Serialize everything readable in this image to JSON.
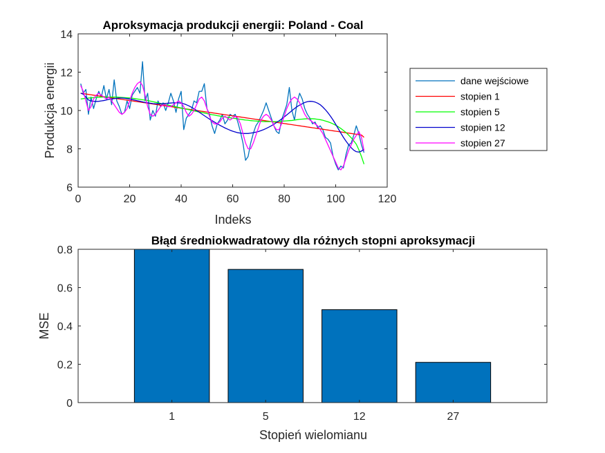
{
  "figure": {
    "background": "#ffffff"
  },
  "chart_data": [
    {
      "type": "line",
      "title": "Aproksymacja produkcji energii: Poland - Coal",
      "xlabel": "Indeks",
      "ylabel": "Produkcja energii",
      "xlim": [
        0,
        120
      ],
      "ylim": [
        6,
        14
      ],
      "xticks": [
        0,
        20,
        40,
        60,
        80,
        100,
        120
      ],
      "yticks": [
        6,
        8,
        10,
        12,
        14
      ],
      "grid": false,
      "legend_position": "right",
      "x": [
        1,
        2,
        3,
        4,
        5,
        6,
        7,
        8,
        9,
        10,
        11,
        12,
        13,
        14,
        15,
        16,
        17,
        18,
        19,
        20,
        21,
        22,
        23,
        24,
        25,
        26,
        27,
        28,
        29,
        30,
        31,
        32,
        33,
        34,
        35,
        36,
        37,
        38,
        39,
        40,
        41,
        42,
        43,
        44,
        45,
        46,
        47,
        48,
        49,
        50,
        51,
        52,
        53,
        54,
        55,
        56,
        57,
        58,
        59,
        60,
        61,
        62,
        63,
        64,
        65,
        66,
        67,
        68,
        69,
        70,
        71,
        72,
        73,
        74,
        75,
        76,
        77,
        78,
        79,
        80,
        81,
        82,
        83,
        84,
        85,
        86,
        87,
        88,
        89,
        90,
        91,
        92,
        93,
        94,
        95,
        96,
        97,
        98,
        99,
        100,
        101,
        102,
        103,
        104,
        105,
        106,
        107,
        108,
        109,
        110,
        111
      ],
      "series": [
        {
          "name": "dane wejściowe",
          "color": "#0072BD",
          "values": [
            11.4,
            10.9,
            11.1,
            9.8,
            10.7,
            10.1,
            10.6,
            11.0,
            10.7,
            11.3,
            10.6,
            11.1,
            10.3,
            11.6,
            10.5,
            10.2,
            9.8,
            9.9,
            10.5,
            10.1,
            10.8,
            11.0,
            11.2,
            10.9,
            12.55,
            10.5,
            10.9,
            9.5,
            10.0,
            9.7,
            10.5,
            10.2,
            10.4,
            10.0,
            10.4,
            10.9,
            10.5,
            9.9,
            10.6,
            11.0,
            9.0,
            9.6,
            9.8,
            10.0,
            10.5,
            10.4,
            11.0,
            11.0,
            11.4,
            10.1,
            9.8,
            9.2,
            8.8,
            9.3,
            9.5,
            9.8,
            9.3,
            9.5,
            9.8,
            9.7,
            9.8,
            9.4,
            8.9,
            8.3,
            7.4,
            7.6,
            8.3,
            8.8,
            9.2,
            9.4,
            9.7,
            10.0,
            10.4,
            10.0,
            9.6,
            9.2,
            8.9,
            8.8,
            9.5,
            9.9,
            10.3,
            11.2,
            10.0,
            9.5,
            10.4,
            10.9,
            10.6,
            10.1,
            9.8,
            9.6,
            9.3,
            9.4,
            9.1,
            9.2,
            9.0,
            8.6,
            8.5,
            8.3,
            7.6,
            7.2,
            6.9,
            7.1,
            7.0,
            7.7,
            8.2,
            8.3,
            8.7,
            9.2,
            8.8,
            8.2,
            7.8
          ]
        },
        {
          "name": "stopien 1",
          "color": "#ff0000",
          "values": [
            10.9,
            10.88,
            10.86,
            10.84,
            10.82,
            10.8,
            10.78,
            10.76,
            10.74,
            10.72,
            10.7,
            10.68,
            10.66,
            10.64,
            10.62,
            10.6,
            10.58,
            10.56,
            10.54,
            10.52,
            10.5,
            10.48,
            10.46,
            10.44,
            10.42,
            10.4,
            10.38,
            10.36,
            10.34,
            10.32,
            10.3,
            10.28,
            10.26,
            10.24,
            10.22,
            10.2,
            10.18,
            10.16,
            10.14,
            10.12,
            10.1,
            10.08,
            10.06,
            10.04,
            10.02,
            10.0,
            9.98,
            9.96,
            9.94,
            9.92,
            9.9,
            9.88,
            9.86,
            9.84,
            9.82,
            9.8,
            9.78,
            9.76,
            9.74,
            9.72,
            9.7,
            9.68,
            9.66,
            9.64,
            9.62,
            9.6,
            9.58,
            9.56,
            9.54,
            9.52,
            9.5,
            9.48,
            9.46,
            9.44,
            9.42,
            9.4,
            9.38,
            9.36,
            9.34,
            9.32,
            9.3,
            9.28,
            9.26,
            9.24,
            9.22,
            9.2,
            9.18,
            9.16,
            9.14,
            9.12,
            9.1,
            9.08,
            9.06,
            9.04,
            9.02,
            9.0,
            8.98,
            8.96,
            8.94,
            8.92,
            8.9,
            8.88,
            8.86,
            8.84,
            8.82,
            8.8,
            8.78,
            8.76,
            8.74,
            8.72,
            8.6
          ]
        },
        {
          "name": "stopien 5",
          "color": "#00ff00",
          "values": [
            10.6,
            10.62,
            10.63,
            10.65,
            10.66,
            10.67,
            10.68,
            10.69,
            10.7,
            10.7,
            10.7,
            10.7,
            10.7,
            10.7,
            10.7,
            10.69,
            10.68,
            10.67,
            10.66,
            10.65,
            10.64,
            10.62,
            10.6,
            10.58,
            10.56,
            10.54,
            10.52,
            10.49,
            10.46,
            10.43,
            10.4,
            10.37,
            10.34,
            10.31,
            10.28,
            10.25,
            10.22,
            10.19,
            10.16,
            10.13,
            10.1,
            10.07,
            10.04,
            10.01,
            9.98,
            9.95,
            9.92,
            9.9,
            9.87,
            9.84,
            9.81,
            9.78,
            9.76,
            9.73,
            9.71,
            9.68,
            9.66,
            9.64,
            9.62,
            9.6,
            9.58,
            9.56,
            9.54,
            9.52,
            9.5,
            9.49,
            9.47,
            9.46,
            9.45,
            9.44,
            9.43,
            9.42,
            9.42,
            9.42,
            9.42,
            9.42,
            9.42,
            9.43,
            9.44,
            9.45,
            9.46,
            9.47,
            9.48,
            9.5,
            9.52,
            9.54,
            9.55,
            9.56,
            9.57,
            9.57,
            9.57,
            9.56,
            9.54,
            9.52,
            9.49,
            9.45,
            9.41,
            9.36,
            9.3,
            9.23,
            9.15,
            9.06,
            8.96,
            8.85,
            8.72,
            8.58,
            8.42,
            8.24,
            7.95,
            7.6,
            7.2
          ]
        },
        {
          "name": "stopien 12",
          "color": "#0000cc",
          "values": [
            10.9,
            10.85,
            10.7,
            10.55,
            10.5,
            10.48,
            10.47,
            10.48,
            10.5,
            10.52,
            10.55,
            10.58,
            10.6,
            10.62,
            10.64,
            10.65,
            10.65,
            10.64,
            10.62,
            10.6,
            10.57,
            10.54,
            10.51,
            10.48,
            10.45,
            10.42,
            10.4,
            10.38,
            10.36,
            10.35,
            10.35,
            10.35,
            10.36,
            10.37,
            10.38,
            10.39,
            10.4,
            10.4,
            10.4,
            10.38,
            10.35,
            10.3,
            10.24,
            10.17,
            10.09,
            10.0,
            9.91,
            9.82,
            9.73,
            9.64,
            9.55,
            9.47,
            9.39,
            9.31,
            9.23,
            9.16,
            9.09,
            9.03,
            8.97,
            8.92,
            8.88,
            8.84,
            8.82,
            8.8,
            8.8,
            8.8,
            8.82,
            8.84,
            8.87,
            8.9,
            8.95,
            9.0,
            9.06,
            9.13,
            9.2,
            9.28,
            9.37,
            9.46,
            9.56,
            9.66,
            9.77,
            9.88,
            9.99,
            10.1,
            10.2,
            10.28,
            10.35,
            10.42,
            10.46,
            10.48,
            10.47,
            10.44,
            10.38,
            10.3,
            10.18,
            10.04,
            9.88,
            9.7,
            9.5,
            9.28,
            9.05,
            8.82,
            8.6,
            8.4,
            8.22,
            8.06,
            7.93,
            7.85,
            7.83,
            7.88,
            7.98
          ]
        },
        {
          "name": "stopien 27",
          "color": "#ff00ff",
          "values": [
            11.3,
            11.0,
            10.5,
            10.0,
            10.2,
            10.6,
            10.8,
            10.9,
            10.8,
            10.7,
            10.6,
            10.7,
            10.5,
            10.3,
            10.1,
            9.9,
            9.8,
            9.9,
            10.1,
            10.5,
            10.9,
            11.2,
            11.4,
            11.5,
            11.3,
            10.8,
            10.2,
            9.8,
            9.7,
            9.8,
            10.0,
            10.2,
            10.3,
            10.3,
            10.2,
            10.2,
            10.3,
            10.4,
            10.5,
            10.4,
            10.2,
            9.9,
            9.7,
            9.8,
            10.0,
            10.3,
            10.6,
            10.7,
            10.5,
            10.1,
            9.7,
            9.4,
            9.3,
            9.3,
            9.4,
            9.6,
            9.7,
            9.6,
            9.5,
            9.6,
            9.7,
            9.6,
            9.3,
            8.8,
            8.3,
            8.0,
            8.0,
            8.3,
            8.7,
            9.1,
            9.5,
            9.7,
            9.8,
            9.7,
            9.5,
            9.2,
            9.0,
            9.0,
            9.3,
            9.7,
            10.1,
            10.4,
            10.6,
            10.7,
            10.6,
            10.4,
            10.1,
            9.8,
            9.6,
            9.5,
            9.4,
            9.3,
            9.2,
            9.0,
            8.8,
            8.5,
            8.2,
            7.9,
            7.6,
            7.3,
            7.0,
            6.9,
            7.1,
            7.5,
            7.9,
            8.2,
            8.5,
            8.7,
            8.9,
            8.6,
            7.9
          ]
        }
      ]
    },
    {
      "type": "bar",
      "title": "Błąd średniokwadratowy dla różnych stopni aproksymacji",
      "xlabel": "Stopień wielomianu",
      "ylabel": "MSE",
      "categories": [
        "1",
        "5",
        "12",
        "27"
      ],
      "values": [
        0.8,
        0.695,
        0.485,
        0.21
      ],
      "ylim": [
        0,
        0.8
      ],
      "yticks": [
        0,
        0.2,
        0.4,
        0.6,
        0.8
      ],
      "ytick_labels": [
        "0",
        "0.2",
        "0.4",
        "0.6",
        "0.8"
      ],
      "bar_color": "#0072BD",
      "grid": false
    }
  ]
}
